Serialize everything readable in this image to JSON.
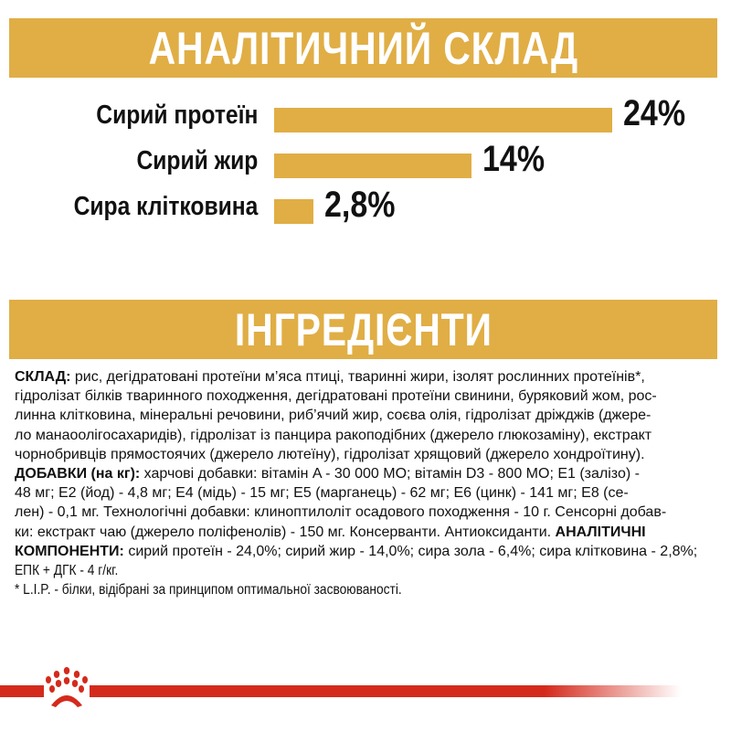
{
  "colors": {
    "accent": "#e0ae45",
    "brand_red": "#d42a1c"
  },
  "analysis_header": "АНАЛІТИЧНИЙ СКЛАД",
  "ingredients_header": "ІНГРЕДІЄНТИ",
  "chart_data": {
    "type": "bar",
    "orientation": "horizontal",
    "categories": [
      "Сирий протеїн",
      "Сирий жир",
      "Сира клітковина"
    ],
    "values": [
      24,
      14,
      2.8
    ],
    "value_labels": [
      "24%",
      "14%",
      "2,8%"
    ],
    "unit": "%"
  },
  "ingredients": {
    "lines": [
      [
        {
          "b": true,
          "t": "СКЛАД: "
        },
        {
          "t": "рис, дегідратовані протеїни м’яса птиці, тваринні жири, ізолят рослинних протеїнів*,"
        }
      ],
      [
        {
          "t": "гідролізат білків тваринного походження, дегідратовані протеїни свинини, буряковий жом, рос-"
        }
      ],
      [
        {
          "t": "линна клітковина, мінеральні речовини, риб’ячий жир, соєва олія, гідролізат дріжджів (джере-"
        }
      ],
      [
        {
          "t": "ло манаоолігосахаридів), гідролізат із панцира ракоподібних (джерело глюкозаміну), екстракт"
        }
      ],
      [
        {
          "t": "чорнобривців прямостоячих (джерело лютеїну), гідролізат хрящовий (джерело хондроїтину)."
        }
      ],
      [
        {
          "b": true,
          "t": "ДОБАВКИ (на кг): "
        },
        {
          "t": "харчові добавки: вітамін A - 30 000 МО; вітамін D3 - 800 МО; E1 (залізо) -"
        }
      ],
      [
        {
          "t": "48 мг; E2 (йод) - 4,8 мг; E4 (мідь) - 15 мг; E5 (марганець) - 62 мг; E6 (цинк) - 141 мг; E8 (се-"
        }
      ],
      [
        {
          "t": "лен) - 0,1 мг. Технологічні добавки: клиноптилоліт осадового походження - 10 г. Сенсорні добав-"
        }
      ],
      [
        {
          "t": "ки: екстракт чаю (джерело поліфенолів) - 150 мг. Консерванти. Антиоксиданти. "
        },
        {
          "b": true,
          "t": "АНАЛІТИЧНІ"
        }
      ],
      [
        {
          "b": true,
          "t": "КОМПОНЕНТИ: "
        },
        {
          "t": "сирий протеїн - 24,0%; сирий жир - 14,0%; сира зола - 6,4%; сира клітковина - 2,8%;"
        }
      ],
      [
        {
          "t": "ЕПК + ДГК  - 4 г/кг."
        }
      ],
      [
        {
          "t": "* L.I.P. - білки, відібрані за принципом оптимальної засвоюваності."
        }
      ]
    ]
  },
  "logo": {
    "icon": "royal-crown-logo"
  }
}
